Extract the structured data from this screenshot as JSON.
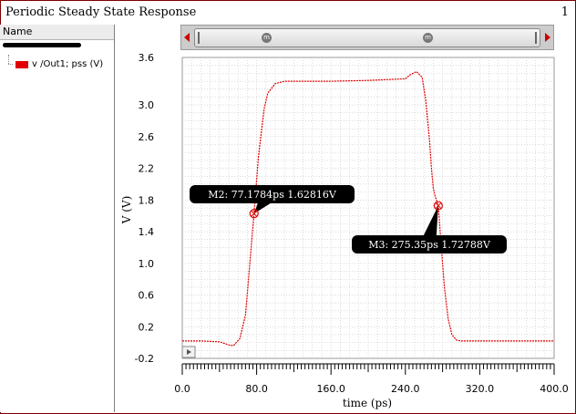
{
  "window": {
    "title": "Periodic Steady State Response",
    "page_number": "1"
  },
  "legend": {
    "header": "Name",
    "items": [
      {
        "label": "v /Out1; pss (V)",
        "color": "#e00000"
      }
    ]
  },
  "scrollbar": {
    "left_icon": "scroll-left-arrow-icon",
    "right_icon": "scroll-right-arrow-icon",
    "marker_glyph": "m"
  },
  "markers": [
    {
      "id": "M2",
      "label": "M2: 77.1784ps 1.62816V",
      "x": 77.1784,
      "y": 1.62816
    },
    {
      "id": "M3",
      "label": "M3: 275.35ps 1.72788V",
      "x": 275.35,
      "y": 1.72788
    }
  ],
  "chart_data": {
    "type": "line",
    "xlabel": "time (ps)",
    "ylabel": "V (V)",
    "xlim": [
      0.0,
      400.0
    ],
    "ylim": [
      -0.2,
      3.6
    ],
    "x_ticks": [
      "0.0",
      "80.0",
      "160.0",
      "240.0",
      "320.0",
      "400.0"
    ],
    "y_ticks": [
      "3.6",
      "3.0",
      "2.6",
      "2.2",
      "1.8",
      "1.4",
      "1.0",
      "0.6",
      "0.2",
      "-0.2"
    ],
    "y_tick_values": [
      3.6,
      3.0,
      2.6,
      2.2,
      1.8,
      1.4,
      1.0,
      0.6,
      0.2,
      -0.2
    ],
    "grid": true,
    "series": [
      {
        "name": "v /Out1; pss (V)",
        "color": "#e00000",
        "x": [
          0,
          20,
          40,
          50,
          55,
          62,
          68,
          72,
          77.18,
          82,
          88,
          92,
          100,
          110,
          120,
          160,
          200,
          240,
          245,
          252,
          258,
          262,
          266,
          268,
          270,
          272,
          275.35,
          278,
          282,
          286,
          290,
          295,
          300,
          310,
          350,
          400
        ],
        "y": [
          0.02,
          0.02,
          0.01,
          -0.03,
          -0.04,
          0.05,
          0.35,
          0.9,
          1.628,
          2.35,
          2.95,
          3.15,
          3.27,
          3.3,
          3.3,
          3.3,
          3.31,
          3.33,
          3.38,
          3.42,
          3.35,
          3.05,
          2.55,
          2.2,
          1.95,
          1.85,
          1.728,
          1.3,
          0.7,
          0.3,
          0.1,
          0.03,
          0.02,
          0.02,
          0.02,
          0.02
        ]
      }
    ]
  }
}
